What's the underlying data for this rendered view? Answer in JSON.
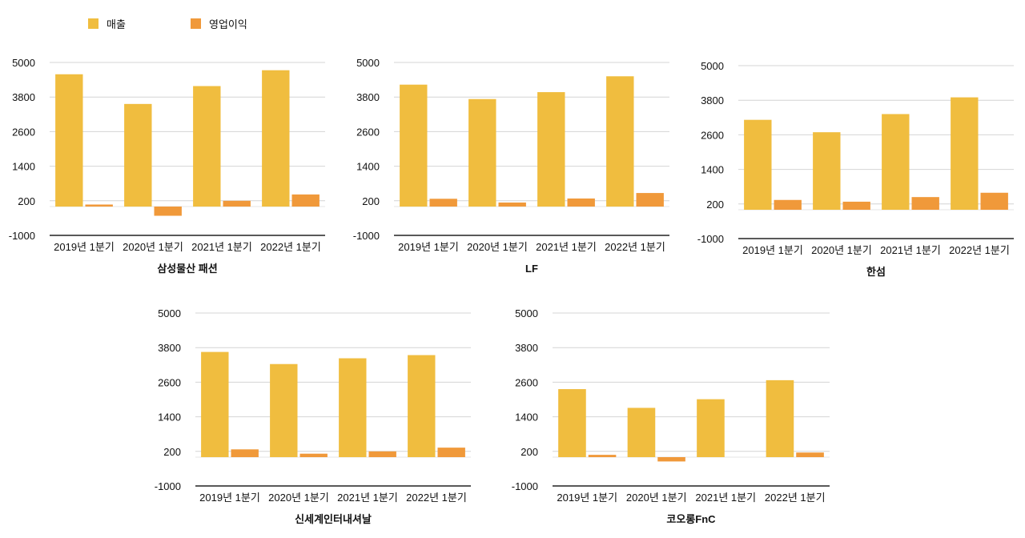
{
  "legend": [
    {
      "name": "매출",
      "color": "#F0BD3F"
    },
    {
      "name": "영업이익",
      "color": "#F0993A"
    }
  ],
  "chart_data": [
    {
      "type": "bar",
      "title": "삼성물산 패션",
      "categories": [
        "2019년 1분기",
        "2020년 1분기",
        "2021년 1분기",
        "2022년 1분기"
      ],
      "yticks": [
        "5000",
        "3800",
        "2600",
        "1400",
        "200",
        "-1000"
      ],
      "ylim": [
        -1000,
        5000
      ],
      "grid": true,
      "series": [
        {
          "name": "매출",
          "values": [
            4590,
            3560,
            4180,
            4730
          ]
        },
        {
          "name": "영업이익",
          "values": [
            70,
            -320,
            200,
            420
          ]
        }
      ]
    },
    {
      "type": "bar",
      "title": "LF",
      "categories": [
        "2019년 1분기",
        "2020년 1분기",
        "2021년 1분기",
        "2022년 1분기"
      ],
      "yticks": [
        "5000",
        "3800",
        "2600",
        "1400",
        "200",
        "-1000"
      ],
      "ylim": [
        -1000,
        5000
      ],
      "grid": true,
      "series": [
        {
          "name": "매출",
          "values": [
            4230,
            3730,
            3970,
            4520
          ]
        },
        {
          "name": "영업이익",
          "values": [
            270,
            140,
            280,
            470
          ]
        }
      ]
    },
    {
      "type": "bar",
      "title": "한섬",
      "categories": [
        "2019년 1분기",
        "2020년 1분기",
        "2021년 1분기",
        "2022년 1분기"
      ],
      "yticks": [
        "5000",
        "3800",
        "2600",
        "1400",
        "200",
        "-1000"
      ],
      "ylim": [
        -1000,
        5000
      ],
      "grid": true,
      "series": [
        {
          "name": "매출",
          "values": [
            3120,
            2690,
            3320,
            3900
          ]
        },
        {
          "name": "영업이익",
          "values": [
            340,
            280,
            440,
            590
          ]
        }
      ]
    },
    {
      "type": "bar",
      "title": "신세계인터내셔날",
      "categories": [
        "2019년 1분기",
        "2020년 1분기",
        "2021년 1분기",
        "2022년 1분기"
      ],
      "yticks": [
        "5000",
        "3800",
        "2600",
        "1400",
        "200",
        "-1000"
      ],
      "ylim": [
        -1000,
        5000
      ],
      "grid": true,
      "series": [
        {
          "name": "매출",
          "values": [
            3650,
            3230,
            3430,
            3540
          ]
        },
        {
          "name": "영업이익",
          "values": [
            270,
            120,
            200,
            330
          ]
        }
      ]
    },
    {
      "type": "bar",
      "title": "코오롱FnC",
      "categories": [
        "2019년 1분기",
        "2020년 1분기",
        "2021년 1분기",
        "2022년 1분기"
      ],
      "yticks": [
        "5000",
        "3800",
        "2600",
        "1400",
        "200",
        "-1000"
      ],
      "ylim": [
        -1000,
        5000
      ],
      "grid": true,
      "series": [
        {
          "name": "매출",
          "values": [
            2360,
            1710,
            2010,
            2670
          ]
        },
        {
          "name": "영업이익",
          "values": [
            80,
            -150,
            0,
            160
          ]
        }
      ]
    }
  ]
}
